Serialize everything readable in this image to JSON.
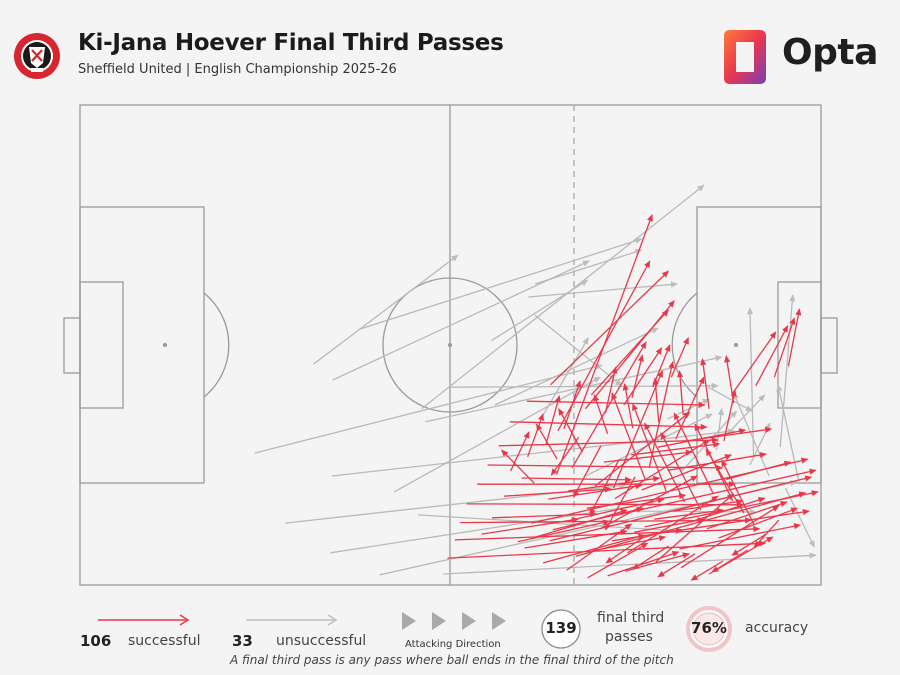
{
  "header": {
    "title": "Ki-Jana Hoever Final Third Passes",
    "subtitle": "Sheffield United | English Championship 2025-26",
    "brand": "Opta",
    "crest_icon": "sheffield-united-crest-icon",
    "colors": {
      "successful": "#e8394b",
      "unsuccessful": "#b9b9b9",
      "accent": "#e8394b"
    }
  },
  "legend": {
    "successful_count": "106",
    "successful_label": "successful",
    "unsuccessful_count": "33",
    "unsuccessful_label": "unsuccessful",
    "direction_label": "Attacking Direction",
    "total_count": "139",
    "total_label_line1": "final third",
    "total_label_line2": "passes",
    "accuracy_value": "76%",
    "accuracy_label": "accuracy",
    "footnote": "A final third pass is any pass where ball ends in the final third of the pitch"
  },
  "chart_data": {
    "type": "pass-map",
    "pitch": {
      "length": 100,
      "width": 100,
      "attacking_direction": "left-to-right",
      "final_third_start": 66.7
    },
    "summary": {
      "total": 139,
      "successful": 106,
      "unsuccessful": 33,
      "accuracy_pct": 76
    },
    "unsuccessful_passes": [
      [
        23.6,
        72.5,
        70.4,
        54.2
      ],
      [
        34.0,
        77.3,
        88.3,
        67.9
      ],
      [
        27.7,
        87.1,
        73.6,
        79.2
      ],
      [
        33.8,
        93.3,
        77.5,
        82.9
      ],
      [
        40.4,
        97.9,
        96.7,
        78.5
      ],
      [
        49.0,
        97.7,
        99.3,
        93.8
      ],
      [
        45.6,
        85.4,
        81.3,
        88.8
      ],
      [
        42.4,
        80.6,
        70.2,
        56.7
      ],
      [
        46.6,
        66.0,
        86.6,
        52.5
      ],
      [
        34.1,
        57.3,
        68.7,
        32.5
      ],
      [
        31.5,
        54.0,
        51.0,
        31.3
      ],
      [
        46.1,
        63.3,
        84.2,
        16.7
      ],
      [
        55.5,
        49.1,
        68.5,
        36.5
      ],
      [
        61.4,
        37.3,
        75.8,
        30.2
      ],
      [
        60.5,
        40.0,
        80.6,
        37.3
      ],
      [
        61.4,
        43.8,
        73.1,
        58.5
      ],
      [
        62.1,
        65.6,
        68.6,
        48.5
      ],
      [
        68.2,
        77.3,
        85.3,
        64.4
      ],
      [
        79.3,
        65.4,
        84.9,
        61.3
      ],
      [
        81.2,
        76.3,
        88.6,
        63.8
      ],
      [
        90.9,
        73.3,
        90.4,
        42.3
      ],
      [
        94.5,
        71.3,
        96.2,
        39.6
      ],
      [
        97.0,
        78.3,
        94.2,
        58.3
      ],
      [
        95.2,
        79.8,
        99.1,
        92.1
      ],
      [
        93.0,
        77.3,
        88.2,
        60.0
      ],
      [
        90.4,
        75.0,
        93.1,
        66.3
      ],
      [
        85.9,
        71.9,
        86.6,
        63.3
      ],
      [
        49.7,
        58.8,
        86.1,
        58.5
      ],
      [
        56.0,
        62.5,
        78.0,
        46.5
      ],
      [
        37.7,
        46.7,
        75.8,
        27.9
      ],
      [
        87.2,
        68.8,
        92.4,
        60.4
      ],
      [
        84.8,
        58.8,
        90.7,
        63.8
      ],
      [
        75.0,
        84.6,
        91.2,
        84.8
      ]
    ],
    "successful_passes": [
      [
        64.5,
        67.9,
        76.9,
        32.5
      ],
      [
        68.2,
        63.3,
        80.2,
        40.8
      ],
      [
        64.3,
        77.0,
        77.2,
        22.9
      ],
      [
        63.5,
        58.3,
        79.4,
        34.6
      ],
      [
        73.4,
        62.5,
        78.5,
        50.6
      ],
      [
        69.0,
        60.4,
        79.4,
        42.7
      ],
      [
        66.4,
        75.6,
        76.4,
        49.4
      ],
      [
        72.0,
        79.8,
        78.6,
        55.4
      ],
      [
        76.8,
        75.6,
        80.0,
        53.5
      ],
      [
        80.4,
        69.6,
        84.2,
        56.7
      ],
      [
        86.9,
        70.0,
        88.4,
        59.4
      ],
      [
        69.5,
        79.4,
        82.3,
        64.0
      ],
      [
        72.2,
        82.0,
        84.9,
        69.8
      ],
      [
        75.8,
        80.2,
        87.9,
        72.9
      ],
      [
        79.3,
        76.1,
        92.6,
        72.7
      ],
      [
        87.2,
        78.0,
        95.9,
        74.4
      ],
      [
        70.4,
        88.1,
        83.3,
        77.3
      ],
      [
        73.9,
        93.3,
        86.1,
        81.5
      ],
      [
        77.7,
        95.2,
        88.2,
        81.0
      ],
      [
        81.1,
        96.4,
        94.3,
        83.5
      ],
      [
        84.9,
        97.7,
        93.5,
        90.0
      ],
      [
        80.9,
        92.5,
        97.2,
        87.5
      ],
      [
        59.6,
        77.7,
        74.4,
        78.1
      ],
      [
        57.2,
        81.5,
        71.7,
        80.0
      ],
      [
        55.6,
        86.0,
        69.7,
        85.2
      ],
      [
        54.2,
        89.4,
        67.2,
        86.3
      ],
      [
        60.0,
        92.3,
        73.8,
        88.8
      ],
      [
        62.5,
        95.4,
        76.2,
        89.6
      ],
      [
        65.7,
        96.9,
        74.4,
        87.3
      ],
      [
        68.5,
        98.5,
        76.6,
        91.3
      ],
      [
        71.2,
        98.1,
        80.8,
        93.1
      ],
      [
        73.6,
        97.1,
        82.2,
        93.5
      ],
      [
        69.1,
        92.9,
        79.0,
        90.0
      ],
      [
        71.8,
        90.8,
        81.2,
        88.5
      ],
      [
        74.8,
        89.0,
        84.2,
        86.3
      ],
      [
        77.5,
        86.3,
        86.8,
        84.4
      ],
      [
        80.1,
        84.6,
        89.4,
        82.5
      ],
      [
        82.3,
        86.9,
        92.4,
        81.9
      ],
      [
        84.6,
        88.3,
        95.4,
        82.7
      ],
      [
        86.2,
        90.2,
        96.8,
        84.0
      ],
      [
        68.4,
        84.0,
        81.7,
        81.3
      ],
      [
        66.2,
        86.5,
        78.8,
        82.1
      ],
      [
        63.8,
        88.5,
        76.0,
        84.0
      ],
      [
        61.5,
        90.0,
        73.8,
        84.4
      ],
      [
        59.1,
        91.0,
        71.4,
        86.7
      ],
      [
        65.9,
        80.4,
        78.2,
        77.7
      ],
      [
        63.2,
        82.1,
        75.8,
        79.2
      ],
      [
        70.7,
        74.4,
        82.6,
        72.3
      ],
      [
        74.4,
        72.9,
        86.3,
        70.6
      ],
      [
        78.0,
        71.3,
        89.8,
        67.7
      ],
      [
        81.7,
        70.0,
        93.3,
        67.5
      ],
      [
        76.3,
        78.1,
        71.8,
        60.0
      ],
      [
        79.1,
        80.4,
        74.6,
        62.3
      ],
      [
        81.6,
        82.7,
        76.2,
        66.3
      ],
      [
        83.8,
        84.4,
        78.4,
        68.3
      ],
      [
        85.4,
        80.8,
        80.2,
        64.2
      ],
      [
        88.1,
        82.5,
        83.0,
        66.5
      ],
      [
        89.6,
        85.0,
        84.5,
        71.7
      ],
      [
        91.0,
        87.5,
        86.6,
        74.0
      ],
      [
        67.3,
        69.2,
        63.6,
        77.1
      ],
      [
        70.3,
        71.0,
        66.6,
        81.7
      ],
      [
        72.7,
        74.0,
        68.8,
        85.4
      ],
      [
        74.9,
        77.5,
        70.9,
        88.5
      ],
      [
        61.3,
        78.8,
        56.9,
        71.9
      ],
      [
        64.4,
        73.8,
        61.6,
        66.5
      ],
      [
        67.8,
        72.3,
        64.6,
        63.3
      ],
      [
        71.2,
        68.5,
        69.4,
        60.4
      ],
      [
        74.6,
        67.3,
        73.5,
        58.1
      ],
      [
        78.1,
        66.0,
        77.6,
        56.9
      ],
      [
        81.4,
        64.6,
        80.9,
        55.4
      ],
      [
        84.9,
        63.3,
        84.0,
        52.9
      ],
      [
        88.2,
        62.1,
        87.2,
        52.3
      ],
      [
        70.9,
        64.2,
        72.3,
        54.6
      ],
      [
        74.5,
        61.0,
        75.9,
        52.1
      ],
      [
        77.3,
        58.8,
        79.6,
        50.0
      ],
      [
        79.8,
        56.7,
        82.1,
        48.5
      ],
      [
        65.3,
        67.5,
        67.5,
        57.5
      ],
      [
        62.9,
        70.6,
        64.7,
        60.6
      ],
      [
        60.4,
        73.3,
        62.5,
        64.4
      ],
      [
        58.1,
        76.3,
        60.6,
        68.1
      ],
      [
        75.9,
        90.2,
        71.0,
        95.4
      ],
      [
        79.4,
        91.9,
        74.6,
        96.7
      ],
      [
        83.0,
        93.5,
        78.0,
        98.3
      ],
      [
        86.8,
        95.0,
        82.5,
        99.0
      ],
      [
        90.1,
        92.7,
        85.3,
        97.3
      ],
      [
        92.6,
        89.4,
        88.0,
        93.8
      ],
      [
        94.3,
        86.5,
        91.0,
        92.1
      ],
      [
        88.1,
        60.0,
        93.9,
        47.3
      ],
      [
        91.2,
        58.5,
        95.5,
        46.0
      ],
      [
        93.7,
        56.7,
        96.4,
        44.4
      ],
      [
        95.6,
        54.4,
        97.1,
        42.5
      ],
      [
        60.3,
        61.7,
        84.3,
        62.5
      ],
      [
        58.0,
        66.0,
        84.6,
        67.1
      ],
      [
        56.5,
        71.0,
        86.1,
        69.8
      ],
      [
        55.0,
        75.0,
        86.7,
        75.6
      ],
      [
        53.6,
        79.0,
        88.4,
        79.0
      ],
      [
        52.2,
        83.1,
        89.5,
        83.3
      ],
      [
        51.3,
        87.0,
        90.6,
        86.5
      ],
      [
        50.6,
        90.6,
        91.7,
        88.3
      ],
      [
        49.6,
        94.4,
        92.5,
        91.3
      ],
      [
        60.9,
        87.1,
        98.2,
        73.8
      ],
      [
        63.4,
        90.8,
        98.7,
        77.5
      ],
      [
        66.9,
        94.0,
        97.9,
        80.8
      ],
      [
        72.0,
        85.6,
        99.3,
        76.1
      ],
      [
        76.2,
        87.9,
        99.6,
        80.6
      ],
      [
        79.2,
        89.0,
        98.4,
        84.6
      ]
    ]
  }
}
